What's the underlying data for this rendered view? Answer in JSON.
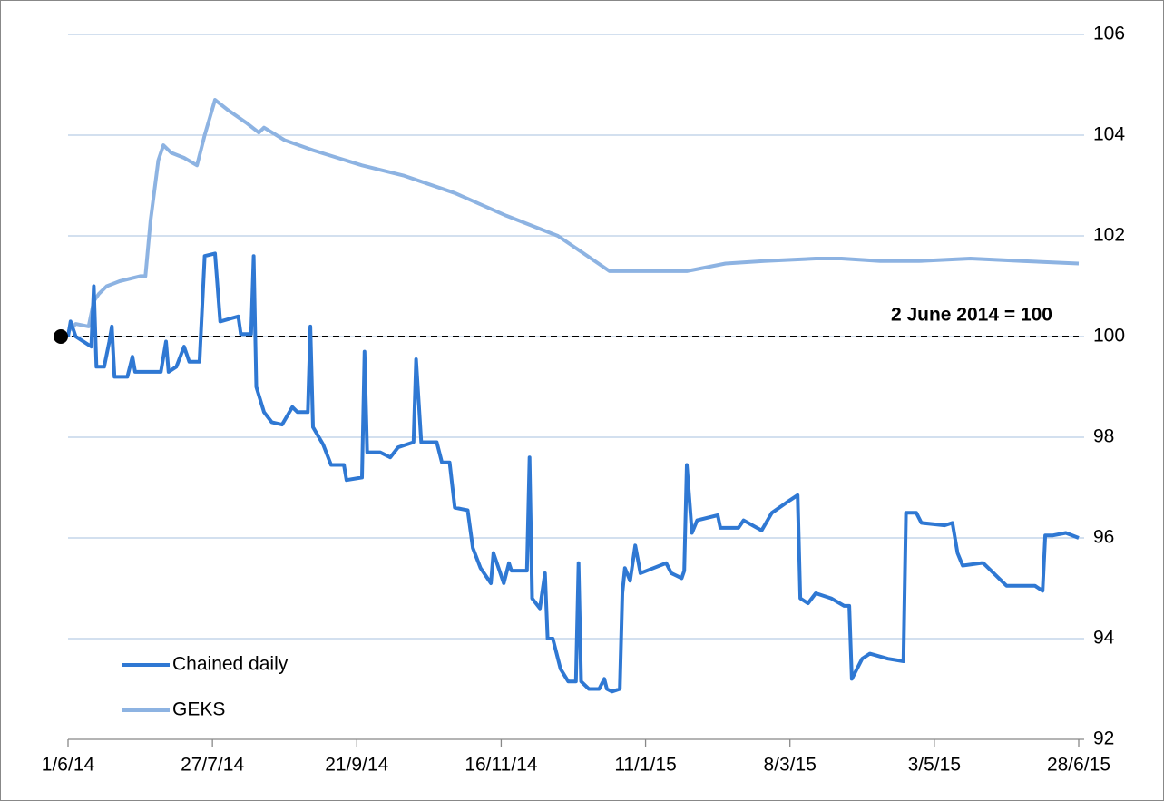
{
  "chart_data": {
    "type": "line",
    "xlim": [
      "1/6/14",
      "28/6/15"
    ],
    "xticks": [
      "1/6/14",
      "27/7/14",
      "21/9/14",
      "16/11/14",
      "11/1/15",
      "8/3/15",
      "3/5/15",
      "28/6/15"
    ],
    "ylim": [
      92,
      106
    ],
    "yticks": [
      92,
      94,
      96,
      98,
      100,
      102,
      104,
      106
    ],
    "grid": true,
    "legend": "bottom-left",
    "reference": {
      "value": 100,
      "x": "1/6/14",
      "label": "2 June 2014 = 100"
    },
    "series": [
      {
        "name": "Chained daily",
        "color": "#2f78d3",
        "x": [
          "1/6/14",
          "2/6/14",
          "4/6/14",
          "10/6/14",
          "11/6/14",
          "12/6/14",
          "15/6/14",
          "17/6/14",
          "18/6/14",
          "19/6/14",
          "24/6/14",
          "26/6/14",
          "27/6/14",
          "7/7/14",
          "9/7/14",
          "10/7/14",
          "13/7/14",
          "16/7/14",
          "18/7/14",
          "22/7/14",
          "24/7/14",
          "28/7/14",
          "30/7/14",
          "6/8/14",
          "7/8/14",
          "11/8/14",
          "12/8/14",
          "13/8/14",
          "16/8/14",
          "19/8/14",
          "23/8/14",
          "27/8/14",
          "29/8/14",
          "2/9/14",
          "3/9/14",
          "4/9/14",
          "8/9/14",
          "11/9/14",
          "16/9/14",
          "17/9/14",
          "23/9/14",
          "24/9/14",
          "25/9/14",
          "30/9/14",
          "4/10/14",
          "7/10/14",
          "13/10/14",
          "14/10/14",
          "16/10/14",
          "22/10/14",
          "24/10/14",
          "27/10/14",
          "29/10/14",
          "3/11/14",
          "5/11/14",
          "8/11/14",
          "12/11/14",
          "13/11/14",
          "17/11/14",
          "19/11/14",
          "20/11/14",
          "26/11/14",
          "27/11/14",
          "28/11/14",
          "1/12/14",
          "3/12/14",
          "4/12/14",
          "6/12/14",
          "9/12/14",
          "12/12/14",
          "15/12/14",
          "16/12/14",
          "17/12/14",
          "20/12/14",
          "24/12/14",
          "26/12/14",
          "27/12/14",
          "29/12/14",
          "1/1/15",
          "2/1/15",
          "3/1/15",
          "5/1/15",
          "7/1/15",
          "9/1/15",
          "14/1/15",
          "19/1/15",
          "21/1/15",
          "25/1/15",
          "26/1/15",
          "27/1/15",
          "29/1/15",
          "31/1/15",
          "8/2/15",
          "9/2/15",
          "16/2/15",
          "18/2/15",
          "25/2/15",
          "1/3/15",
          "8/3/15",
          "11/3/15",
          "12/3/15",
          "15/3/15",
          "18/3/15",
          "24/3/15",
          "29/3/15",
          "31/3/15",
          "1/4/15",
          "5/4/15",
          "8/4/15",
          "15/4/15",
          "21/4/15",
          "22/4/15",
          "26/4/15",
          "28/4/15",
          "7/5/15",
          "10/5/15",
          "12/5/15",
          "14/5/15",
          "21/5/15",
          "22/5/15",
          "28/5/15",
          "31/5/15",
          "11/6/15",
          "14/6/15",
          "15/6/15",
          "18/6/15",
          "23/6/15",
          "28/6/15"
        ],
        "values": [
          100.0,
          100.3,
          100.0,
          99.8,
          101.0,
          99.4,
          99.4,
          99.9,
          100.2,
          99.2,
          99.2,
          99.6,
          99.3,
          99.3,
          99.9,
          99.3,
          99.4,
          99.8,
          99.5,
          99.5,
          101.6,
          101.65,
          100.3,
          100.4,
          100.05,
          100.05,
          101.6,
          99.0,
          98.5,
          98.3,
          98.25,
          98.6,
          98.5,
          98.5,
          100.2,
          98.2,
          97.85,
          97.45,
          97.45,
          97.15,
          97.2,
          99.7,
          97.7,
          97.7,
          97.6,
          97.8,
          97.9,
          99.55,
          97.9,
          97.9,
          97.5,
          97.5,
          96.6,
          96.55,
          95.8,
          95.4,
          95.1,
          95.7,
          95.1,
          95.5,
          95.35,
          95.35,
          97.6,
          94.8,
          94.6,
          95.3,
          94.0,
          94.0,
          93.4,
          93.15,
          93.15,
          95.5,
          93.15,
          93.0,
          93.0,
          93.2,
          93.0,
          92.95,
          93.0,
          94.9,
          95.4,
          95.15,
          95.85,
          95.3,
          95.4,
          95.5,
          95.3,
          95.2,
          95.35,
          97.45,
          96.1,
          96.35,
          96.45,
          96.2,
          96.2,
          96.35,
          96.15,
          96.5,
          96.75,
          96.85,
          94.8,
          94.7,
          94.9,
          94.8,
          94.65,
          94.65,
          93.2,
          93.6,
          93.7,
          93.6,
          93.55,
          96.5,
          96.5,
          96.3,
          96.25,
          96.3,
          95.7,
          95.45,
          95.5,
          95.5,
          95.2,
          95.05,
          95.05,
          94.95,
          96.05,
          96.05,
          96.1,
          96.0
        ]
      },
      {
        "name": "GEKS",
        "color": "#8db3e2",
        "x": [
          "1/6/14",
          "4/6/14",
          "9/6/14",
          "11/6/14",
          "13/6/14",
          "16/6/14",
          "21/6/14",
          "29/6/14",
          "1/7/14",
          "3/7/14",
          "6/7/14",
          "8/7/14",
          "11/7/14",
          "16/7/14",
          "21/7/14",
          "24/7/14",
          "28/7/14",
          "2/8/14",
          "9/8/14",
          "14/8/14",
          "16/8/14",
          "24/8/14",
          "4/9/14",
          "23/9/14",
          "9/10/14",
          "29/10/14",
          "18/11/14",
          "8/12/14",
          "18/12/14",
          "28/12/14",
          "12/1/15",
          "27/1/15",
          "11/2/15",
          "26/2/15",
          "18/3/15",
          "28/3/15",
          "12/4/15",
          "27/4/15",
          "17/5/15",
          "6/6/15",
          "28/6/15"
        ],
        "values": [
          100.1,
          100.25,
          100.2,
          100.7,
          100.85,
          101.0,
          101.1,
          101.2,
          101.2,
          102.3,
          103.5,
          103.8,
          103.65,
          103.55,
          103.4,
          104.0,
          104.7,
          104.5,
          104.25,
          104.05,
          104.15,
          103.9,
          103.7,
          103.4,
          103.2,
          102.85,
          102.4,
          102.0,
          101.65,
          101.3,
          101.3,
          101.3,
          101.45,
          101.5,
          101.55,
          101.55,
          101.5,
          101.5,
          101.55,
          101.5,
          101.45
        ]
      }
    ]
  }
}
